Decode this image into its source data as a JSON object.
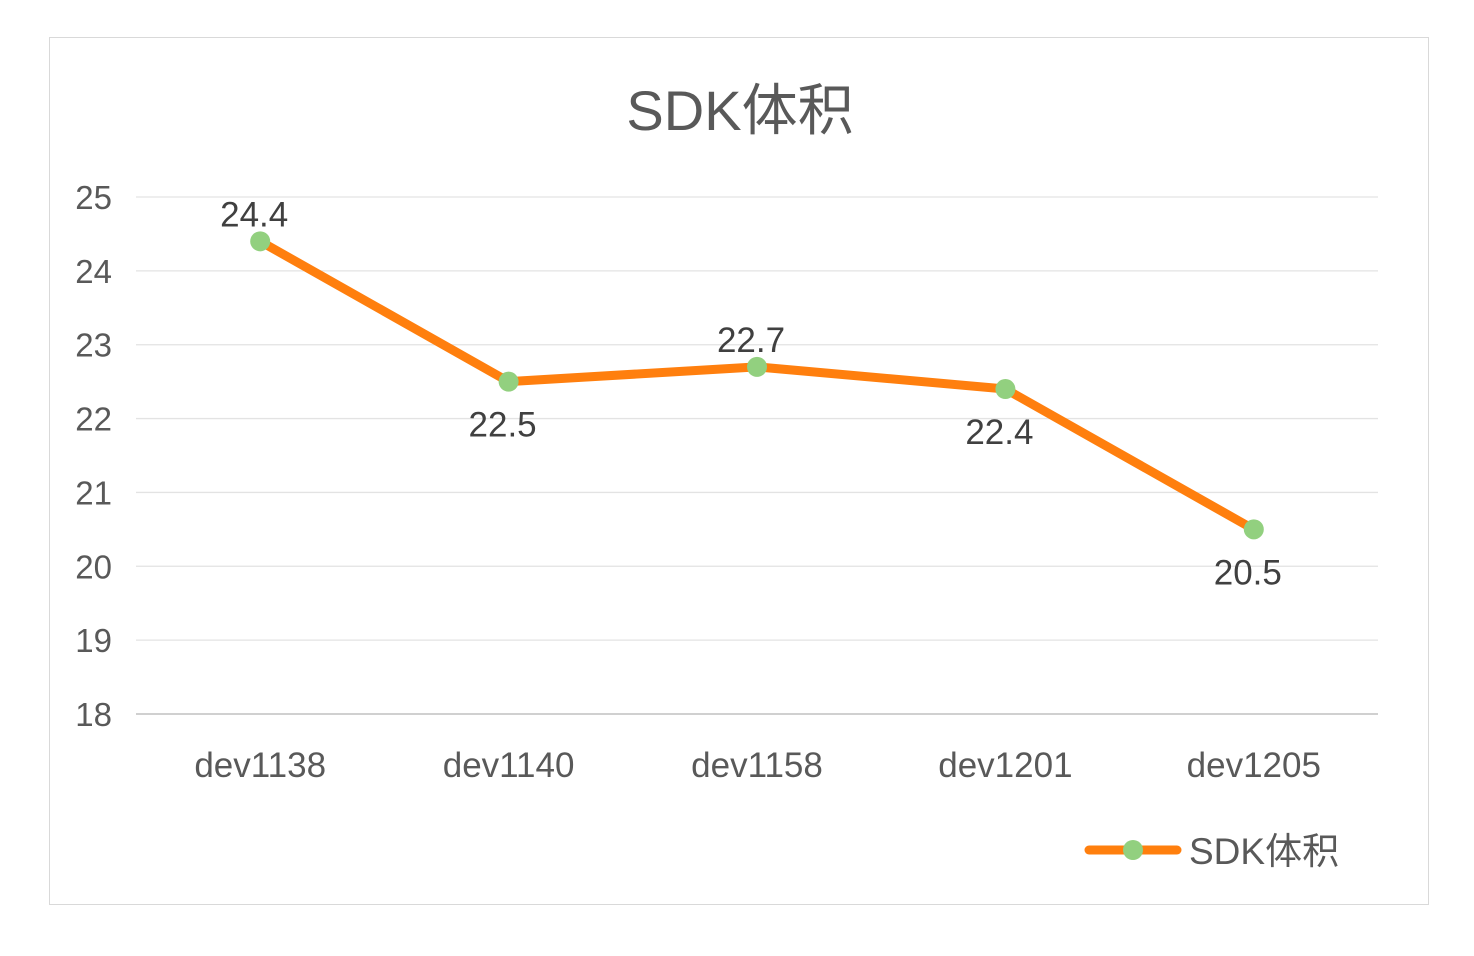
{
  "chart_data": {
    "type": "line",
    "title": "SDK体积",
    "xlabel": "",
    "ylabel": "",
    "categories": [
      "dev1138",
      "dev1140",
      "dev1158",
      "dev1201",
      "dev1205"
    ],
    "series": [
      {
        "name": "SDK体积",
        "values": [
          24.4,
          22.5,
          22.7,
          22.4,
          20.5
        ],
        "color": "#ff7f0e",
        "marker_color": "#92d07f"
      }
    ],
    "data_labels": [
      "24.4",
      "22.5",
      "22.7",
      "22.4",
      "20.5"
    ],
    "data_label_positions": [
      "above",
      "below",
      "above",
      "below",
      "below"
    ],
    "ylim": [
      18,
      25
    ],
    "yticks": [
      "18",
      "19",
      "20",
      "21",
      "22",
      "23",
      "24",
      "25"
    ],
    "grid": true,
    "legend_position": "bottom-right"
  }
}
